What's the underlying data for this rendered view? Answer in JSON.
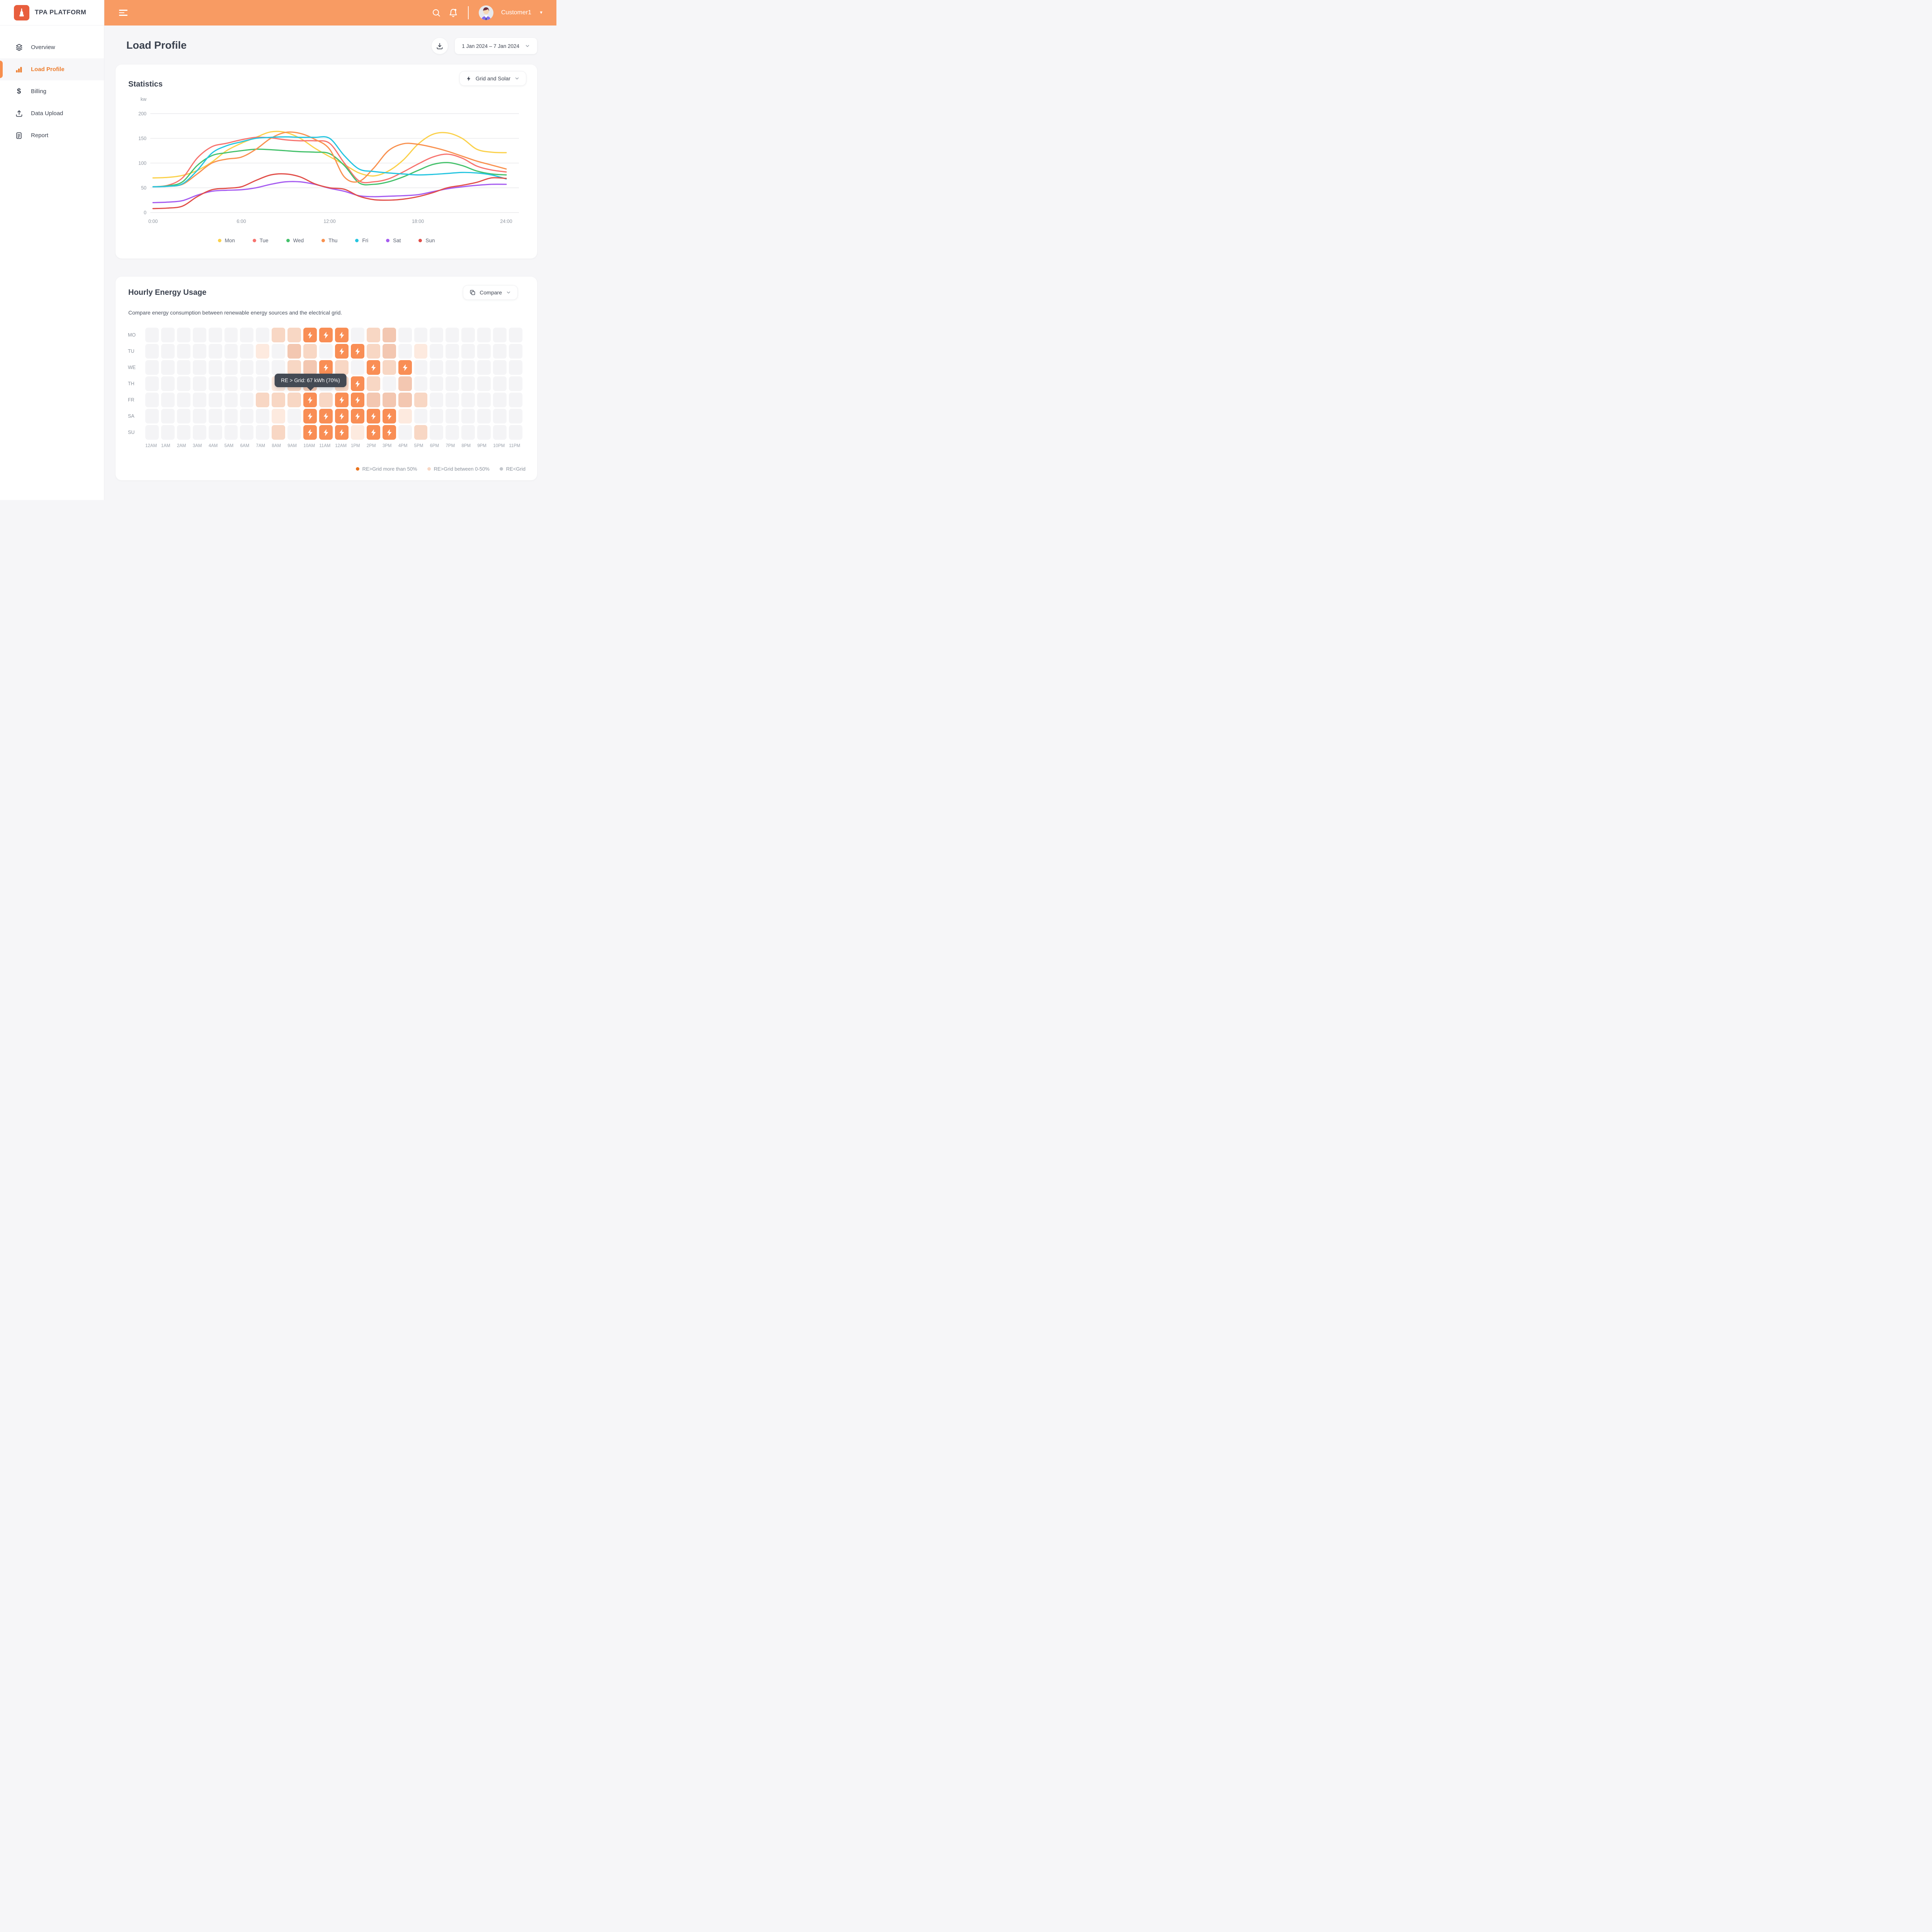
{
  "app": {
    "brand": "TPA PLATFORM",
    "brand_color": "#e85e3d",
    "header_color": "#f89b63"
  },
  "header": {
    "user": "Customer1"
  },
  "sidebar": {
    "items": [
      {
        "label": "Overview",
        "icon": "layers-icon",
        "active": false
      },
      {
        "label": "Load Profile",
        "icon": "bar-chart-icon",
        "active": true
      },
      {
        "label": "Billing",
        "icon": "dollar-icon",
        "active": false
      },
      {
        "label": "Data Upload",
        "icon": "upload-icon",
        "active": false
      },
      {
        "label": "Report",
        "icon": "document-icon",
        "active": false
      }
    ],
    "active_color": "#ed7d2e"
  },
  "page": {
    "title": "Load Profile",
    "date_range": "1 Jan 2024 – 7 Jan 2024"
  },
  "statistics": {
    "title": "Statistics",
    "filter_label": "Grid and Solar"
  },
  "chart_data": {
    "type": "line",
    "title": "Statistics",
    "ylabel": "kw",
    "ylim": [
      0,
      200
    ],
    "yticks": [
      0,
      50,
      100,
      150,
      200
    ],
    "xticks": [
      "0:00",
      "6:00",
      "12:00",
      "18:00",
      "24:00"
    ],
    "x_hours": [
      0,
      1,
      2,
      3,
      4,
      5,
      6,
      7,
      8,
      9,
      10,
      11,
      12,
      13,
      14,
      15,
      16,
      17,
      18,
      19,
      20,
      21,
      22,
      23,
      24
    ],
    "grid": true,
    "legend_position": "bottom",
    "series": [
      {
        "name": "Mon",
        "color": "#fbd14b",
        "values": [
          70,
          71,
          75,
          85,
          102,
          125,
          140,
          152,
          163,
          162,
          150,
          130,
          113,
          97,
          80,
          74,
          84,
          106,
          138,
          158,
          161,
          150,
          128,
          122,
          121
        ]
      },
      {
        "name": "Tue",
        "color": "#f7736e",
        "values": [
          52,
          55,
          70,
          110,
          133,
          140,
          147,
          152,
          151,
          147,
          145,
          145,
          140,
          100,
          64,
          62,
          68,
          82,
          98,
          112,
          118,
          110,
          94,
          86,
          82
        ]
      },
      {
        "name": "Wed",
        "color": "#44c16b",
        "values": [
          52,
          54,
          62,
          95,
          115,
          121,
          125,
          128,
          127,
          125,
          123,
          122,
          119,
          95,
          60,
          57,
          62,
          72,
          85,
          97,
          101,
          95,
          84,
          78,
          76
        ]
      },
      {
        "name": "Thu",
        "color": "#f9914f",
        "values": [
          52,
          53,
          57,
          78,
          100,
          108,
          112,
          128,
          150,
          162,
          160,
          148,
          128,
          72,
          63,
          90,
          125,
          139,
          138,
          132,
          124,
          114,
          104,
          96,
          88
        ]
      },
      {
        "name": "Fri",
        "color": "#25c5e0",
        "values": [
          52,
          53,
          58,
          85,
          120,
          135,
          143,
          150,
          152,
          153,
          152,
          152,
          150,
          115,
          88,
          83,
          80,
          78,
          76,
          77,
          79,
          81,
          80,
          76,
          68
        ]
      },
      {
        "name": "Sat",
        "color": "#a55bf0",
        "values": [
          20,
          21,
          24,
          35,
          43,
          45,
          46,
          50,
          57,
          62,
          62,
          57,
          49,
          43,
          34,
          32,
          33,
          34,
          36,
          42,
          48,
          52,
          55,
          57,
          57
        ]
      },
      {
        "name": "Sun",
        "color": "#e14e49",
        "values": [
          8,
          9,
          13,
          32,
          46,
          49,
          52,
          65,
          76,
          78,
          72,
          58,
          50,
          47,
          33,
          26,
          25,
          27,
          32,
          40,
          50,
          55,
          61,
          70,
          69
        ]
      }
    ]
  },
  "hourly": {
    "title": "Hourly Energy Usage",
    "subtitle": "Compare energy consumption between renewable energy sources and the electrical grid.",
    "compare_label": "Compare",
    "row_labels": [
      "MO",
      "TU",
      "WE",
      "TH",
      "FR",
      "SA",
      "SU"
    ],
    "col_labels": [
      "12AM",
      "1AM",
      "2AM",
      "3AM",
      "4AM",
      "5AM",
      "6AM",
      "7AM",
      "8AM",
      "9AM",
      "10AM",
      "11AM",
      "12AM",
      "1PM",
      "2PM",
      "3PM",
      "4PM",
      "5PM",
      "6PM",
      "7PM",
      "8PM",
      "9PM",
      "10PM",
      "11PM"
    ],
    "cell_colors": {
      "g": "#f4f4f6",
      "s": "#fdeadf",
      "m": "#f8d7c4",
      "d": "#f3c7b1",
      "b": "#f98e55"
    },
    "cells": [
      [
        "g",
        "g",
        "g",
        "g",
        "g",
        "g",
        "g",
        "g",
        "m",
        "m",
        "b",
        "b",
        "b",
        "g",
        "m",
        "d",
        "g",
        "g",
        "g",
        "g",
        "g",
        "g",
        "g",
        "g"
      ],
      [
        "g",
        "g",
        "g",
        "g",
        "g",
        "g",
        "g",
        "s",
        "g",
        "d",
        "m",
        "g",
        "b",
        "b",
        "m",
        "d",
        "g",
        "s",
        "g",
        "g",
        "g",
        "g",
        "g",
        "g"
      ],
      [
        "g",
        "g",
        "g",
        "g",
        "g",
        "g",
        "g",
        "g",
        "g",
        "m",
        "d",
        "b",
        "m",
        "g",
        "b",
        "m",
        "b",
        "g",
        "g",
        "g",
        "g",
        "g",
        "g",
        "g"
      ],
      [
        "g",
        "g",
        "g",
        "g",
        "g",
        "g",
        "g",
        "g",
        "s",
        "m",
        "d",
        "g",
        "m",
        "b",
        "m",
        "g",
        "d",
        "g",
        "g",
        "g",
        "g",
        "g",
        "g",
        "g"
      ],
      [
        "g",
        "g",
        "g",
        "g",
        "g",
        "g",
        "g",
        "m",
        "m",
        "m",
        "b",
        "m",
        "b",
        "b",
        "d",
        "d",
        "d",
        "m",
        "g",
        "g",
        "g",
        "g",
        "g",
        "g"
      ],
      [
        "g",
        "g",
        "g",
        "g",
        "g",
        "g",
        "g",
        "g",
        "s",
        "g",
        "b",
        "b",
        "b",
        "b",
        "b",
        "b",
        "s",
        "g",
        "g",
        "g",
        "g",
        "g",
        "g",
        "g"
      ],
      [
        "g",
        "g",
        "g",
        "g",
        "g",
        "g",
        "g",
        "g",
        "m",
        "g",
        "b",
        "b",
        "b",
        "s",
        "b",
        "b",
        "g",
        "m",
        "g",
        "g",
        "g",
        "g",
        "g",
        "g"
      ]
    ],
    "tooltip": {
      "text": "RE > Grid: 67 kWh (70%)",
      "row_index": 4,
      "col_index": 10
    },
    "legend": [
      {
        "label": "RE>Grid more than 50%",
        "color": "#e9731d"
      },
      {
        "label": "RE>Grid between 0-50%",
        "color": "#f8d7c4"
      },
      {
        "label": "RE<Grid",
        "color": "#c3c7cc"
      }
    ]
  }
}
